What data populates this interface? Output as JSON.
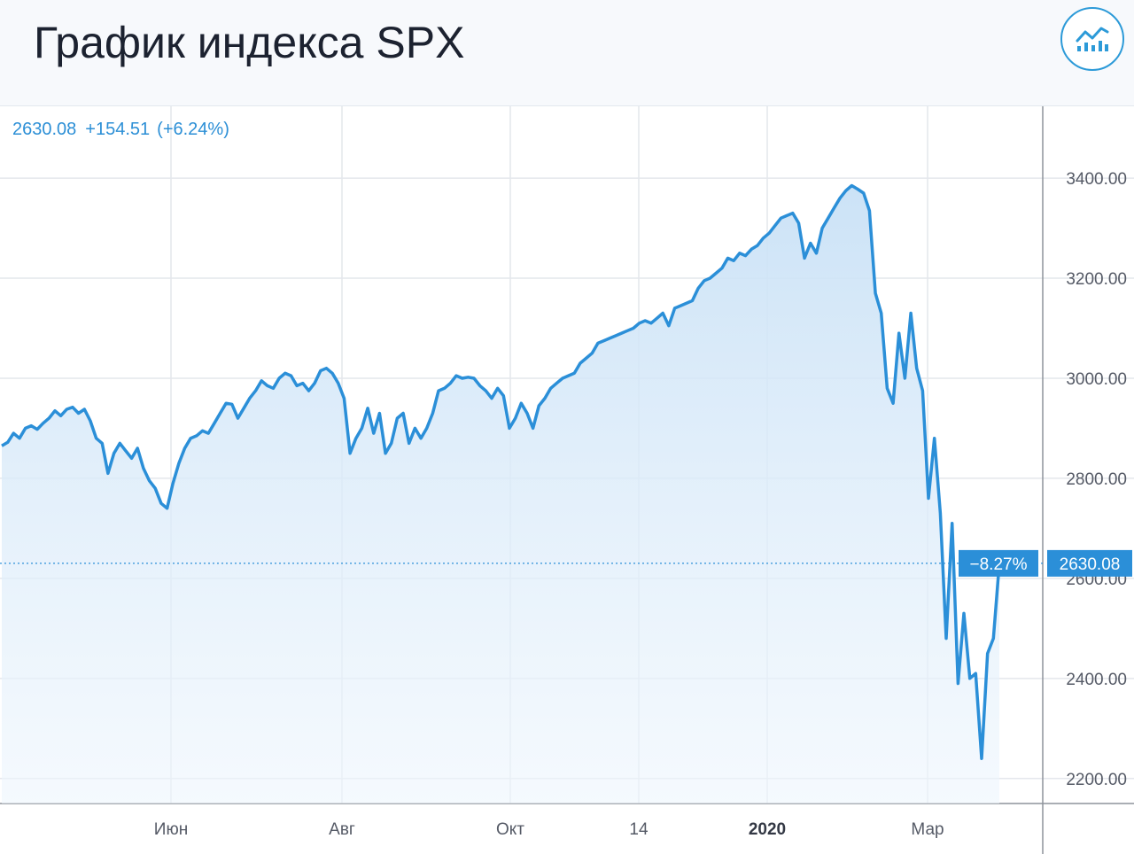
{
  "header": {
    "title": "График индекса SPX",
    "chart_toggle_icon": "line-bar-chart-icon"
  },
  "quote": {
    "last": "2630.08",
    "change": "+154.51",
    "change_pct": "(+6.24%)"
  },
  "badges": {
    "pct_label": "−8.27%",
    "price_label": "2630.08"
  },
  "colors": {
    "accent": "#2c9ad8",
    "line": "#2b8fd8",
    "area_top": "#cfe5f7",
    "grid": "#e4e7ec"
  },
  "chart_data": {
    "type": "area",
    "title": "График индекса SPX",
    "xlabel": "",
    "ylabel": "",
    "ylim": [
      2150,
      3540
    ],
    "y_ticks": [
      "3400.00",
      "3200.00",
      "3000.00",
      "2800.00",
      "2600.00",
      "2400.00",
      "2200.00"
    ],
    "x_ticks": [
      {
        "label": "Июн",
        "bold": false
      },
      {
        "label": "Авг",
        "bold": false
      },
      {
        "label": "Окт",
        "bold": false
      },
      {
        "label": "14",
        "bold": false
      },
      {
        "label": "2020",
        "bold": true
      },
      {
        "label": "Мар",
        "bold": false
      }
    ],
    "reference_value": 2630.08,
    "grid": true,
    "series": [
      {
        "values": [
          2865,
          2872,
          2890,
          2880,
          2900,
          2905,
          2898,
          2910,
          2920,
          2935,
          2925,
          2938,
          2942,
          2930,
          2938,
          2915,
          2880,
          2870,
          2810,
          2850,
          2870,
          2855,
          2840,
          2860,
          2820,
          2795,
          2780,
          2750,
          2740,
          2790,
          2830,
          2860,
          2880,
          2885,
          2895,
          2890,
          2910,
          2930,
          2950,
          2948,
          2920,
          2940,
          2960,
          2975,
          2995,
          2985,
          2980,
          3000,
          3010,
          3005,
          2985,
          2990,
          2975,
          2990,
          3015,
          3020,
          3010,
          2990,
          2960,
          2850,
          2880,
          2900,
          2940,
          2890,
          2930,
          2850,
          2870,
          2920,
          2930,
          2870,
          2900,
          2880,
          2900,
          2930,
          2975,
          2980,
          2990,
          3005,
          3000,
          3002,
          3000,
          2985,
          2975,
          2960,
          2980,
          2965,
          2900,
          2920,
          2950,
          2930,
          2900,
          2945,
          2960,
          2980,
          2990,
          3000,
          3005,
          3010,
          3030,
          3040,
          3050,
          3070,
          3075,
          3080,
          3085,
          3090,
          3095,
          3100,
          3110,
          3115,
          3110,
          3120,
          3130,
          3105,
          3140,
          3145,
          3150,
          3155,
          3180,
          3195,
          3200,
          3210,
          3220,
          3240,
          3235,
          3250,
          3245,
          3258,
          3265,
          3280,
          3290,
          3305,
          3320,
          3325,
          3330,
          3310,
          3240,
          3270,
          3250,
          3300,
          3320,
          3340,
          3360,
          3375,
          3385,
          3378,
          3370,
          3335,
          3170,
          3130,
          2980,
          2950,
          3090,
          3000,
          3130,
          3020,
          2975,
          2760,
          2880,
          2730,
          2480,
          2710,
          2390,
          2530,
          2400,
          2410,
          2240,
          2450,
          2480,
          2630.08
        ]
      }
    ]
  }
}
